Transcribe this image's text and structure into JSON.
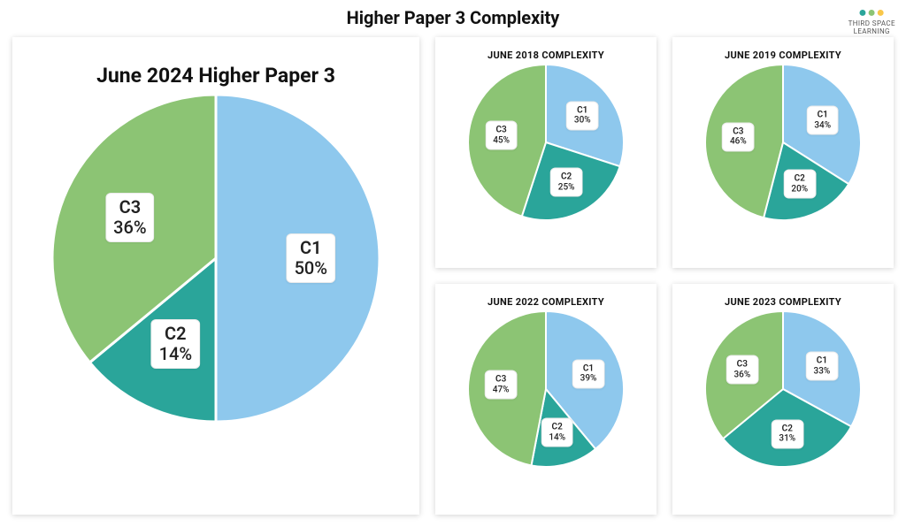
{
  "page_title": "Higher Paper 3 Complexity",
  "logo": {
    "line1": "THIRD SPACE",
    "line2": "LEARNING",
    "dot_colors": [
      "#2aa59a",
      "#8cc474",
      "#f9c749"
    ]
  },
  "colors": {
    "c1": "#8ec8ed",
    "c2": "#2aa59a",
    "c3": "#8cc474",
    "stroke": "#ffffff",
    "panel_bg": "#ffffff"
  },
  "main_chart": {
    "title": "June 2024 Higher Paper 3",
    "title_fontsize": 23,
    "radius": 185,
    "label_fontsize": 20,
    "label_pct_fontsize": 20,
    "slices": [
      {
        "key": "C1",
        "pct": 50,
        "color": "#8ec8ed"
      },
      {
        "key": "C2",
        "pct": 14,
        "color": "#2aa59a"
      },
      {
        "key": "C3",
        "pct": 36,
        "color": "#8cc474"
      }
    ]
  },
  "small_charts": [
    {
      "title": "JUNE 2018 COMPLEXITY",
      "slices": [
        {
          "key": "C1",
          "pct": 30,
          "color": "#8ec8ed"
        },
        {
          "key": "C2",
          "pct": 25,
          "color": "#2aa59a"
        },
        {
          "key": "C3",
          "pct": 45,
          "color": "#8cc474"
        }
      ]
    },
    {
      "title": "JUNE 2019 COMPLEXITY",
      "slices": [
        {
          "key": "C1",
          "pct": 34,
          "color": "#8ec8ed"
        },
        {
          "key": "C2",
          "pct": 20,
          "color": "#2aa59a"
        },
        {
          "key": "C3",
          "pct": 46,
          "color": "#8cc474"
        }
      ]
    },
    {
      "title": "JUNE 2022 COMPLEXITY",
      "slices": [
        {
          "key": "C1",
          "pct": 39,
          "color": "#8ec8ed"
        },
        {
          "key": "C2",
          "pct": 14,
          "color": "#2aa59a"
        },
        {
          "key": "C3",
          "pct": 47,
          "color": "#8cc474"
        }
      ]
    },
    {
      "title": "JUNE 2023 COMPLEXITY",
      "slices": [
        {
          "key": "C1",
          "pct": 33,
          "color": "#8ec8ed"
        },
        {
          "key": "C2",
          "pct": 31,
          "color": "#2aa59a"
        },
        {
          "key": "C3",
          "pct": 36,
          "color": "#8cc474"
        }
      ]
    }
  ],
  "small_chart_style": {
    "title_fontsize": 11,
    "radius": 88,
    "label_fontsize": 10,
    "label_pct_fontsize": 10
  }
}
